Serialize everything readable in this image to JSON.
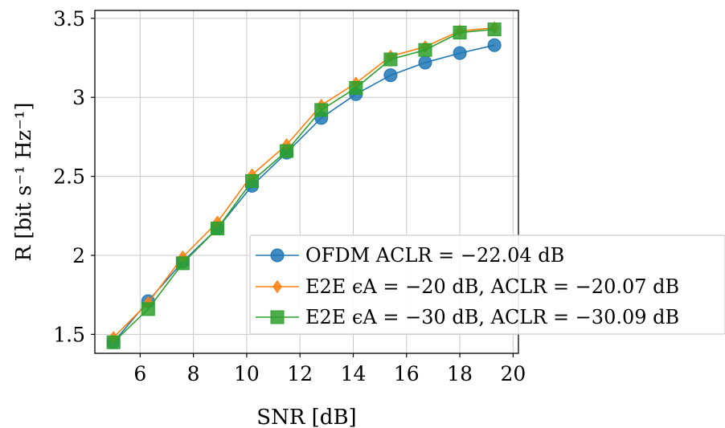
{
  "chart_data": {
    "type": "line",
    "xlabel": "SNR [dB]",
    "ylabel": "R [bit s⁻¹ Hz⁻¹]",
    "xlim": [
      4.3,
      20.2
    ],
    "ylim": [
      1.38,
      3.55
    ],
    "xticks": [
      6,
      8,
      10,
      12,
      14,
      16,
      18,
      20
    ],
    "yticks": [
      1.5,
      2,
      2.5,
      3,
      3.5
    ],
    "xtick_labels": [
      "6",
      "8",
      "10",
      "12",
      "14",
      "16",
      "18",
      "20"
    ],
    "ytick_labels": [
      "1.5",
      "2",
      "2.5",
      "3",
      "3.5"
    ],
    "grid": true,
    "legend_position": "lower-right",
    "x": [
      5.0,
      6.3,
      7.6,
      8.9,
      10.2,
      11.5,
      12.8,
      14.1,
      15.4,
      16.7,
      18.0,
      19.3
    ],
    "series": [
      {
        "name": "OFDM ACLR = −22.04 dB",
        "color": "#1f77b4",
        "marker": "circle",
        "values": [
          1.45,
          1.71,
          1.96,
          2.17,
          2.44,
          2.65,
          2.87,
          3.02,
          3.14,
          3.22,
          3.28,
          3.33
        ]
      },
      {
        "name": "E2E ϵA = −20 dB, ACLR = −20.07 dB",
        "color": "#ff7f0e",
        "marker": "diamond",
        "values": [
          1.48,
          1.7,
          1.99,
          2.21,
          2.51,
          2.7,
          2.95,
          3.09,
          3.26,
          3.32,
          3.42,
          3.44
        ]
      },
      {
        "name": "E2E ϵA = −30 dB, ACLR = −30.09 dB",
        "color": "#2ca02c",
        "marker": "square",
        "values": [
          1.45,
          1.66,
          1.95,
          2.17,
          2.47,
          2.66,
          2.92,
          3.06,
          3.24,
          3.3,
          3.41,
          3.43
        ]
      }
    ]
  }
}
